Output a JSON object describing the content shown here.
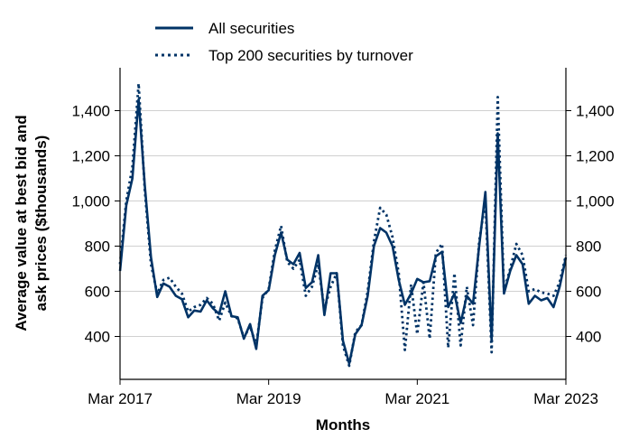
{
  "chart_data": {
    "type": "line",
    "xlabel": "Months",
    "ylabel": [
      "Average value at best bid and",
      "ask prices ($thousands)"
    ],
    "x_ticks": [
      {
        "label": "Mar 2017",
        "month": 0
      },
      {
        "label": "Mar 2019",
        "month": 24
      },
      {
        "label": "Mar 2021",
        "month": 48
      },
      {
        "label": "Mar 2023",
        "month": 72
      }
    ],
    "y_ticks": [
      400,
      600,
      800,
      1000,
      1200,
      1400
    ],
    "y_tick_labels": [
      "400",
      "600",
      "800",
      "1,000",
      "1,200",
      "1,400"
    ],
    "xlim": [
      "Mar 2017",
      "Mar 2023"
    ],
    "ylim": [
      210,
      1590
    ],
    "grid": "horizontal",
    "legend": "top-left",
    "color": "#003366",
    "series": [
      {
        "name": "All securities",
        "style": "solid",
        "values": [
          690,
          980,
          1100,
          1450,
          1070,
          750,
          575,
          635,
          620,
          580,
          565,
          485,
          515,
          510,
          560,
          525,
          500,
          600,
          490,
          485,
          390,
          455,
          345,
          580,
          605,
          760,
          860,
          740,
          720,
          770,
          615,
          640,
          760,
          495,
          680,
          680,
          380,
          280,
          410,
          450,
          580,
          800,
          880,
          860,
          800,
          650,
          540,
          590,
          655,
          640,
          645,
          755,
          775,
          530,
          590,
          460,
          580,
          545,
          800,
          1040,
          380,
          1300,
          590,
          690,
          760,
          720,
          545,
          580,
          560,
          570,
          530,
          620,
          750
        ],
        "x_months": [
          0,
          1,
          2,
          3,
          4,
          5,
          6,
          7,
          8,
          9,
          10,
          11,
          12,
          13,
          14,
          15,
          16,
          17,
          18,
          19,
          20,
          21,
          22,
          23,
          24,
          25,
          26,
          27,
          28,
          29,
          30,
          31,
          32,
          33,
          34,
          35,
          36,
          37,
          38,
          39,
          40,
          41,
          42,
          43,
          44,
          45,
          46,
          47,
          48,
          49,
          50,
          51,
          52,
          53,
          54,
          55,
          56,
          57,
          58,
          59,
          60,
          61,
          62,
          63,
          64,
          65,
          66,
          67,
          68,
          69,
          70,
          71,
          72
        ]
      },
      {
        "name": "Top 200 securities by turnover",
        "style": "dotted",
        "values": [
          720,
          1000,
          1150,
          1520,
          1050,
          720,
          590,
          650,
          660,
          620,
          590,
          510,
          530,
          540,
          570,
          545,
          470,
          550,
          490,
          480,
          395,
          445,
          360,
          570,
          610,
          780,
          890,
          730,
          700,
          740,
          580,
          620,
          720,
          520,
          620,
          680,
          360,
          270,
          420,
          450,
          600,
          820,
          970,
          940,
          840,
          680,
          340,
          630,
          410,
          640,
          390,
          770,
          810,
          350,
          680,
          360,
          620,
          450,
          820,
          1000,
          330,
          1460,
          600,
          700,
          810,
          760,
          600,
          610,
          595,
          590,
          580,
          640,
          760
        ],
        "x_months": [
          0,
          1,
          2,
          3,
          4,
          5,
          6,
          7,
          8,
          9,
          10,
          11,
          12,
          13,
          14,
          15,
          16,
          17,
          18,
          19,
          20,
          21,
          22,
          23,
          24,
          25,
          26,
          27,
          28,
          29,
          30,
          31,
          32,
          33,
          34,
          35,
          36,
          37,
          38,
          39,
          40,
          41,
          42,
          43,
          44,
          45,
          46,
          47,
          48,
          49,
          50,
          51,
          52,
          53,
          54,
          55,
          56,
          57,
          58,
          59,
          60,
          61,
          62,
          63,
          64,
          65,
          66,
          67,
          68,
          69,
          70,
          71,
          72
        ]
      }
    ]
  }
}
